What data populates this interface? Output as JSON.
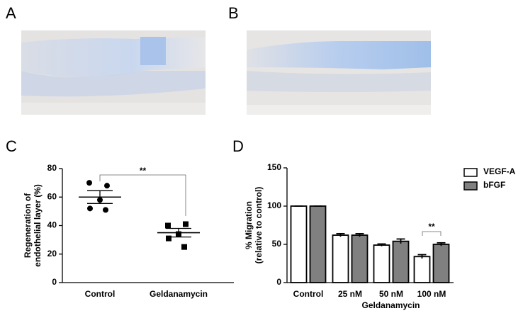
{
  "panel_labels": [
    "A",
    "B",
    "C",
    "D"
  ],
  "chart_data": [
    {
      "type": "dot",
      "ylabel": [
        "Regeneration of",
        "endothelial layer (%)"
      ],
      "categories": [
        "Control",
        "Geldanamycin"
      ],
      "values": [
        [
          70,
          68,
          58,
          52,
          51
        ],
        [
          40,
          41,
          34,
          31,
          25
        ]
      ],
      "markers": [
        "circle",
        "square"
      ],
      "color": "#000000",
      "means": [
        60,
        35
      ],
      "errors": [
        4.5,
        3
      ],
      "ylim": [
        0,
        80
      ],
      "yticks": [
        0,
        20,
        40,
        60,
        80
      ],
      "annotation": "**"
    },
    {
      "type": "bar",
      "ylabel": [
        "% Migration",
        "(relative to control)"
      ],
      "xlabel": "Geldanamycin",
      "categories": [
        "Control",
        "25 nM",
        "50 nM",
        "100 nM"
      ],
      "series": [
        {
          "name": "VEGF-A",
          "color": "#ffffff",
          "values": [
            100,
            62,
            49,
            34
          ],
          "errors": [
            0,
            2,
            1.5,
            2.5
          ]
        },
        {
          "name": "bFGF",
          "color": "#808080",
          "values": [
            100,
            62,
            54,
            50
          ],
          "errors": [
            0,
            2,
            3,
            2
          ]
        }
      ],
      "ylim": [
        0,
        150
      ],
      "yticks": [
        0,
        50,
        100,
        150
      ],
      "legend": "right",
      "annotation": "**"
    }
  ]
}
